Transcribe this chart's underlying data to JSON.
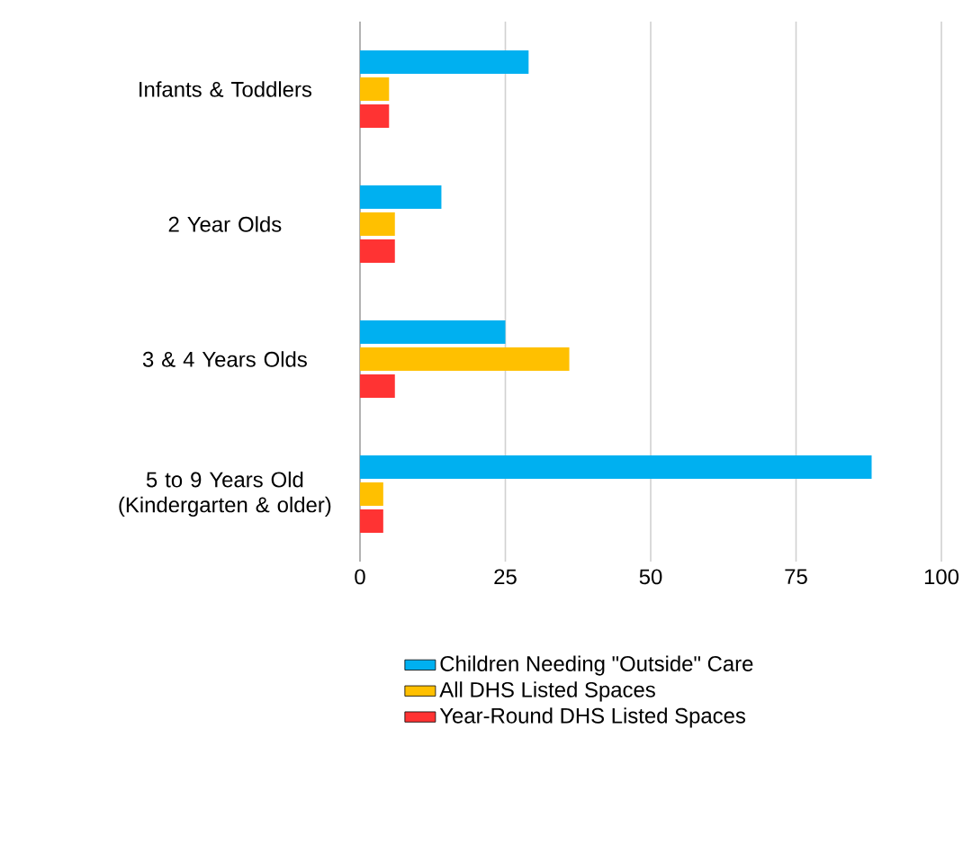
{
  "chart_data": {
    "type": "bar",
    "orientation": "horizontal",
    "categories": [
      "Infants & Toddlers",
      "2 Year Olds",
      "3 & 4 Years Olds",
      "5 to 9 Years Old (Kindergarten & older)"
    ],
    "series": [
      {
        "name": "Children Needing \"Outside\" Care",
        "color": "#00b0f0",
        "values": [
          29,
          14,
          25,
          88
        ]
      },
      {
        "name": "All DHS Listed Spaces",
        "color": "#ffc000",
        "values": [
          5,
          6,
          36,
          4
        ]
      },
      {
        "name": "Year-Round DHS Listed Spaces",
        "color": "#ff3333",
        "values": [
          5,
          6,
          6,
          4
        ]
      }
    ],
    "xlim": [
      0,
      100
    ],
    "xticks": [
      0,
      25,
      50,
      75,
      100
    ],
    "grid": "x",
    "legend": "bottom"
  }
}
